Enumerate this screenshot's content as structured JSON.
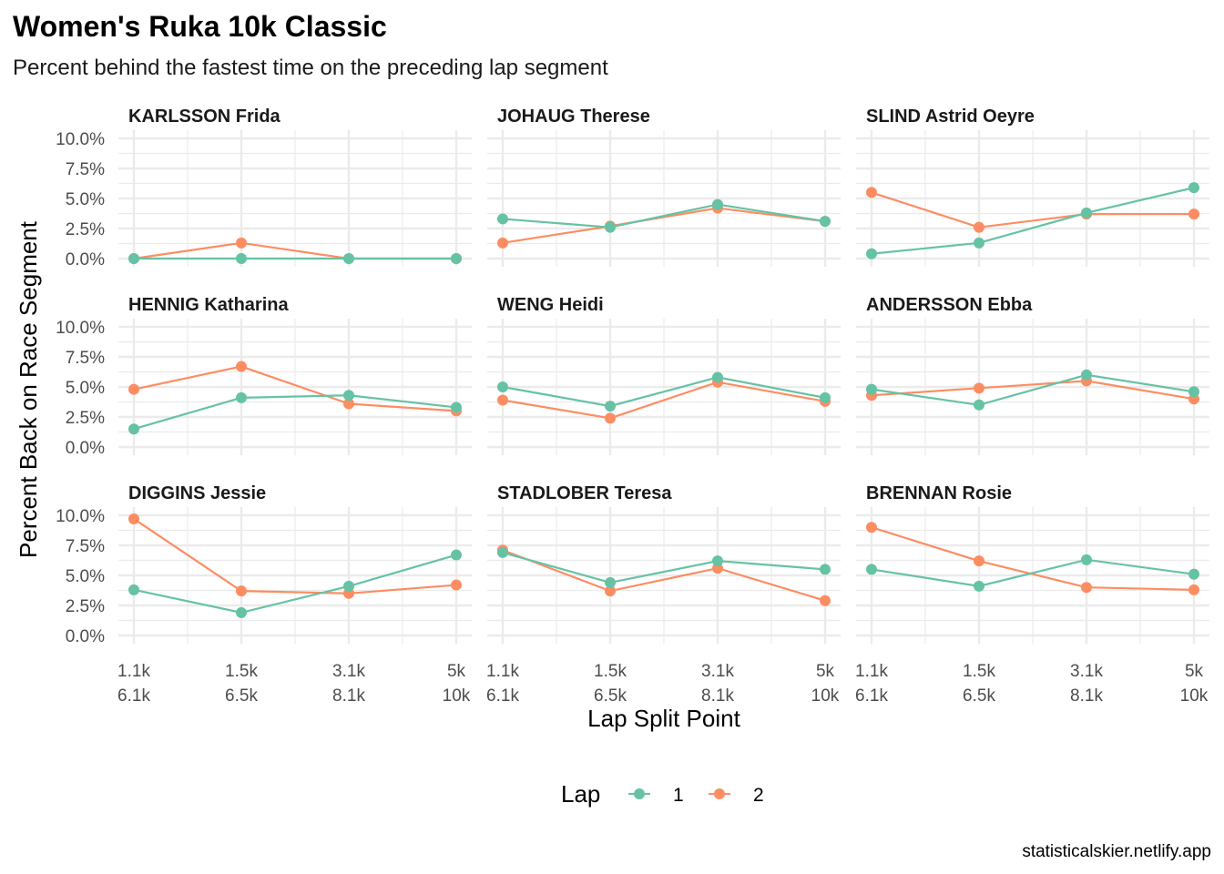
{
  "title": "Women's Ruka 10k Classic",
  "subtitle": "Percent behind the fastest time on the preceding lap segment",
  "caption": "statisticalskier.netlify.app",
  "colors": {
    "lap1": "#66c2a5",
    "lap2": "#fc8d62",
    "grid": "#ebebeb"
  },
  "chart_data": {
    "type": "line",
    "xlabel": "Lap Split Point",
    "ylabel": "Percent Back on Race Segment",
    "x_categories": [
      [
        "1.1k",
        "6.1k"
      ],
      [
        "1.5k",
        "6.5k"
      ],
      [
        "3.1k",
        "8.1k"
      ],
      [
        "5k",
        "10k"
      ]
    ],
    "ylim": [
      0,
      10
    ],
    "y_ticks": [
      "0.0%",
      "2.5%",
      "5.0%",
      "7.5%",
      "10.0%"
    ],
    "y_tick_values": [
      0,
      2.5,
      5,
      7.5,
      10
    ],
    "legend": {
      "title": "Lap",
      "position": "bottom",
      "entries": [
        "1",
        "2"
      ]
    },
    "grid": true,
    "facets": [
      {
        "name": "KARLSSON Frida",
        "lap1": [
          0,
          0,
          0,
          0
        ],
        "lap2": [
          0,
          1.3,
          0,
          0
        ]
      },
      {
        "name": "JOHAUG Therese",
        "lap1": [
          3.3,
          2.6,
          4.5,
          3.1
        ],
        "lap2": [
          1.3,
          2.7,
          4.2,
          3.1
        ]
      },
      {
        "name": "SLIND Astrid Oeyre",
        "lap1": [
          0.4,
          1.3,
          3.8,
          5.9
        ],
        "lap2": [
          5.5,
          2.6,
          3.7,
          3.7
        ]
      },
      {
        "name": "HENNIG Katharina",
        "lap1": [
          1.5,
          4.1,
          4.3,
          3.3
        ],
        "lap2": [
          4.8,
          6.7,
          3.6,
          3.0
        ]
      },
      {
        "name": "WENG Heidi",
        "lap1": [
          5.0,
          3.4,
          5.8,
          4.1
        ],
        "lap2": [
          3.9,
          2.4,
          5.4,
          3.8
        ]
      },
      {
        "name": "ANDERSSON Ebba",
        "lap1": [
          4.8,
          3.5,
          6.0,
          4.6
        ],
        "lap2": [
          4.3,
          4.9,
          5.5,
          4.0
        ]
      },
      {
        "name": "DIGGINS Jessie",
        "lap1": [
          3.8,
          1.9,
          4.1,
          6.7
        ],
        "lap2": [
          9.7,
          3.7,
          3.5,
          4.2
        ]
      },
      {
        "name": "STADLOBER Teresa",
        "lap1": [
          6.9,
          4.4,
          6.2,
          5.5
        ],
        "lap2": [
          7.1,
          3.7,
          5.6,
          2.9
        ]
      },
      {
        "name": "BRENNAN Rosie",
        "lap1": [
          5.5,
          4.1,
          6.3,
          5.1
        ],
        "lap2": [
          9.0,
          6.2,
          4.0,
          3.8
        ]
      }
    ]
  }
}
